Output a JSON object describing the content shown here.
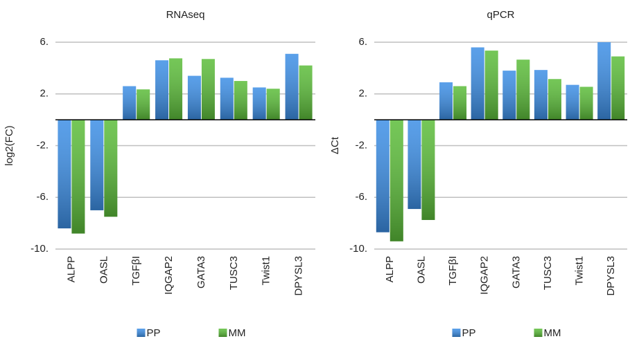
{
  "chart_data": [
    {
      "type": "bar",
      "title": "RNAseq",
      "y_label": "log2(FC)",
      "categories": [
        "ALPP",
        "OASL",
        "TGFβI",
        "IQGAP2",
        "GATA3",
        "TUSC3",
        "Twist1",
        "DPYSL3"
      ],
      "series": [
        {
          "name": "PP",
          "color": "#3d8fe6",
          "values": [
            -8.4,
            -7.0,
            2.6,
            4.6,
            3.4,
            3.25,
            2.5,
            5.1
          ]
        },
        {
          "name": "MM",
          "color": "#5cbd3a",
          "values": [
            -8.8,
            -7.5,
            2.35,
            4.75,
            4.7,
            3.0,
            2.4,
            4.2
          ]
        }
      ],
      "ylim": [
        -10,
        6
      ],
      "yticks": [
        {
          "value": -10,
          "label": "-10."
        },
        {
          "value": -6,
          "label": "-6."
        },
        {
          "value": -2,
          "label": "-2."
        },
        {
          "value": 2,
          "label": "2."
        },
        {
          "value": 6,
          "label": "6."
        }
      ],
      "grid": true,
      "legend": "bottom"
    },
    {
      "type": "bar",
      "title": "qPCR",
      "y_label": "ΔCt",
      "categories": [
        "ALPP",
        "OASL",
        "TGFβI",
        "IQGAP2",
        "GATA3",
        "TUSC3",
        "Twist1",
        "DPYSL3"
      ],
      "series": [
        {
          "name": "PP",
          "color": "#3d8fe6",
          "values": [
            -8.7,
            -6.9,
            2.9,
            5.6,
            3.8,
            3.85,
            2.7,
            6.0
          ]
        },
        {
          "name": "MM",
          "color": "#5cbd3a",
          "values": [
            -9.4,
            -7.75,
            2.6,
            5.35,
            4.65,
            3.15,
            2.55,
            4.9
          ]
        }
      ],
      "ylim": [
        -10,
        6
      ],
      "yticks": [
        {
          "value": -10,
          "label": "-10."
        },
        {
          "value": -6,
          "label": "-6."
        },
        {
          "value": -2,
          "label": "-2."
        },
        {
          "value": 2,
          "label": "2."
        },
        {
          "value": 6,
          "label": "6."
        }
      ],
      "grid": true,
      "legend": "bottom"
    }
  ]
}
